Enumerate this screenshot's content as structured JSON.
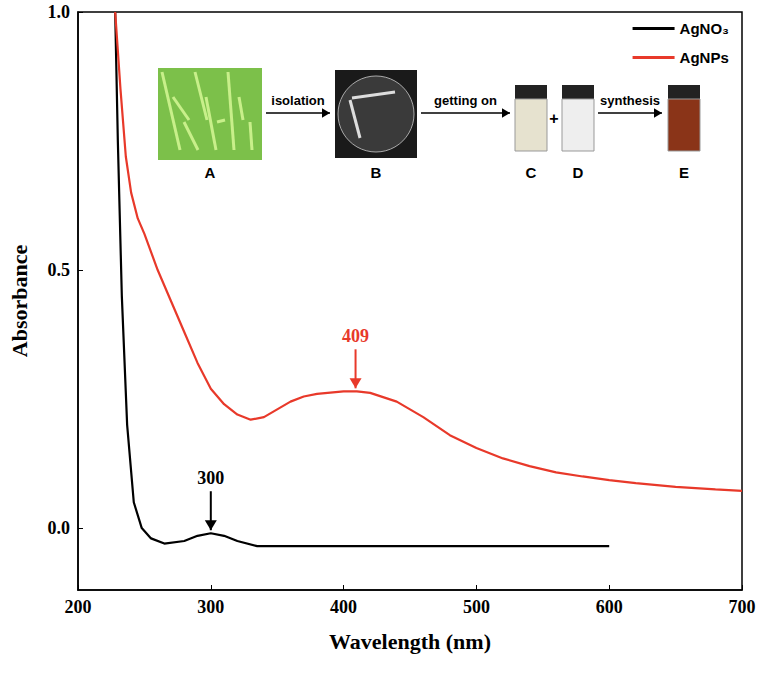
{
  "chart_data": {
    "type": "line",
    "x_label": "Wavelength (nm)",
    "y_label": "Absorbance",
    "xlim": [
      200,
      700
    ],
    "xticks": [
      200,
      300,
      400,
      500,
      600,
      700
    ],
    "ylim": [
      -0.12,
      1.0
    ],
    "yticks": [
      {
        "value": 0,
        "label": "0.0"
      },
      {
        "value": 0.5,
        "label": "0.5"
      },
      {
        "value": 1.0,
        "label": "1.0"
      }
    ],
    "grid": false,
    "legend": "upper right",
    "series": [
      {
        "name": "AgNO₃",
        "color": "#000000",
        "x": [
          228,
          230,
          233,
          237,
          242,
          248,
          255,
          265,
          280,
          290,
          300,
          310,
          320,
          335,
          400,
          500,
          600
        ],
        "values": [
          1.0,
          0.75,
          0.45,
          0.2,
          0.05,
          0.0,
          -0.02,
          -0.03,
          -0.025,
          -0.015,
          -0.01,
          -0.015,
          -0.025,
          -0.035,
          -0.035,
          -0.035,
          -0.035
        ]
      },
      {
        "name": "AgNPs",
        "color": "#e8392a",
        "x": [
          228,
          232,
          236,
          240,
          245,
          250,
          260,
          270,
          280,
          290,
          300,
          310,
          320,
          330,
          340,
          350,
          360,
          370,
          380,
          400,
          410,
          420,
          440,
          460,
          480,
          500,
          520,
          540,
          560,
          580,
          600,
          620,
          650,
          680,
          700
        ],
        "values": [
          1.0,
          0.85,
          0.72,
          0.65,
          0.6,
          0.57,
          0.5,
          0.44,
          0.38,
          0.32,
          0.27,
          0.24,
          0.22,
          0.21,
          0.215,
          0.23,
          0.245,
          0.255,
          0.26,
          0.265,
          0.265,
          0.262,
          0.245,
          0.215,
          0.18,
          0.155,
          0.135,
          0.12,
          0.108,
          0.1,
          0.093,
          0.087,
          0.08,
          0.075,
          0.072
        ]
      }
    ],
    "annotations": [
      {
        "text": "409",
        "x": 409,
        "y": 0.265,
        "color": "#e8392a"
      },
      {
        "text": "300",
        "x": 300,
        "y": -0.01,
        "color": "#000000"
      }
    ],
    "inset": {
      "panels": [
        "A",
        "B",
        "C",
        "D",
        "E"
      ],
      "steps": [
        "isolation",
        "getting on",
        "synthesis"
      ],
      "joiner": "+"
    }
  }
}
